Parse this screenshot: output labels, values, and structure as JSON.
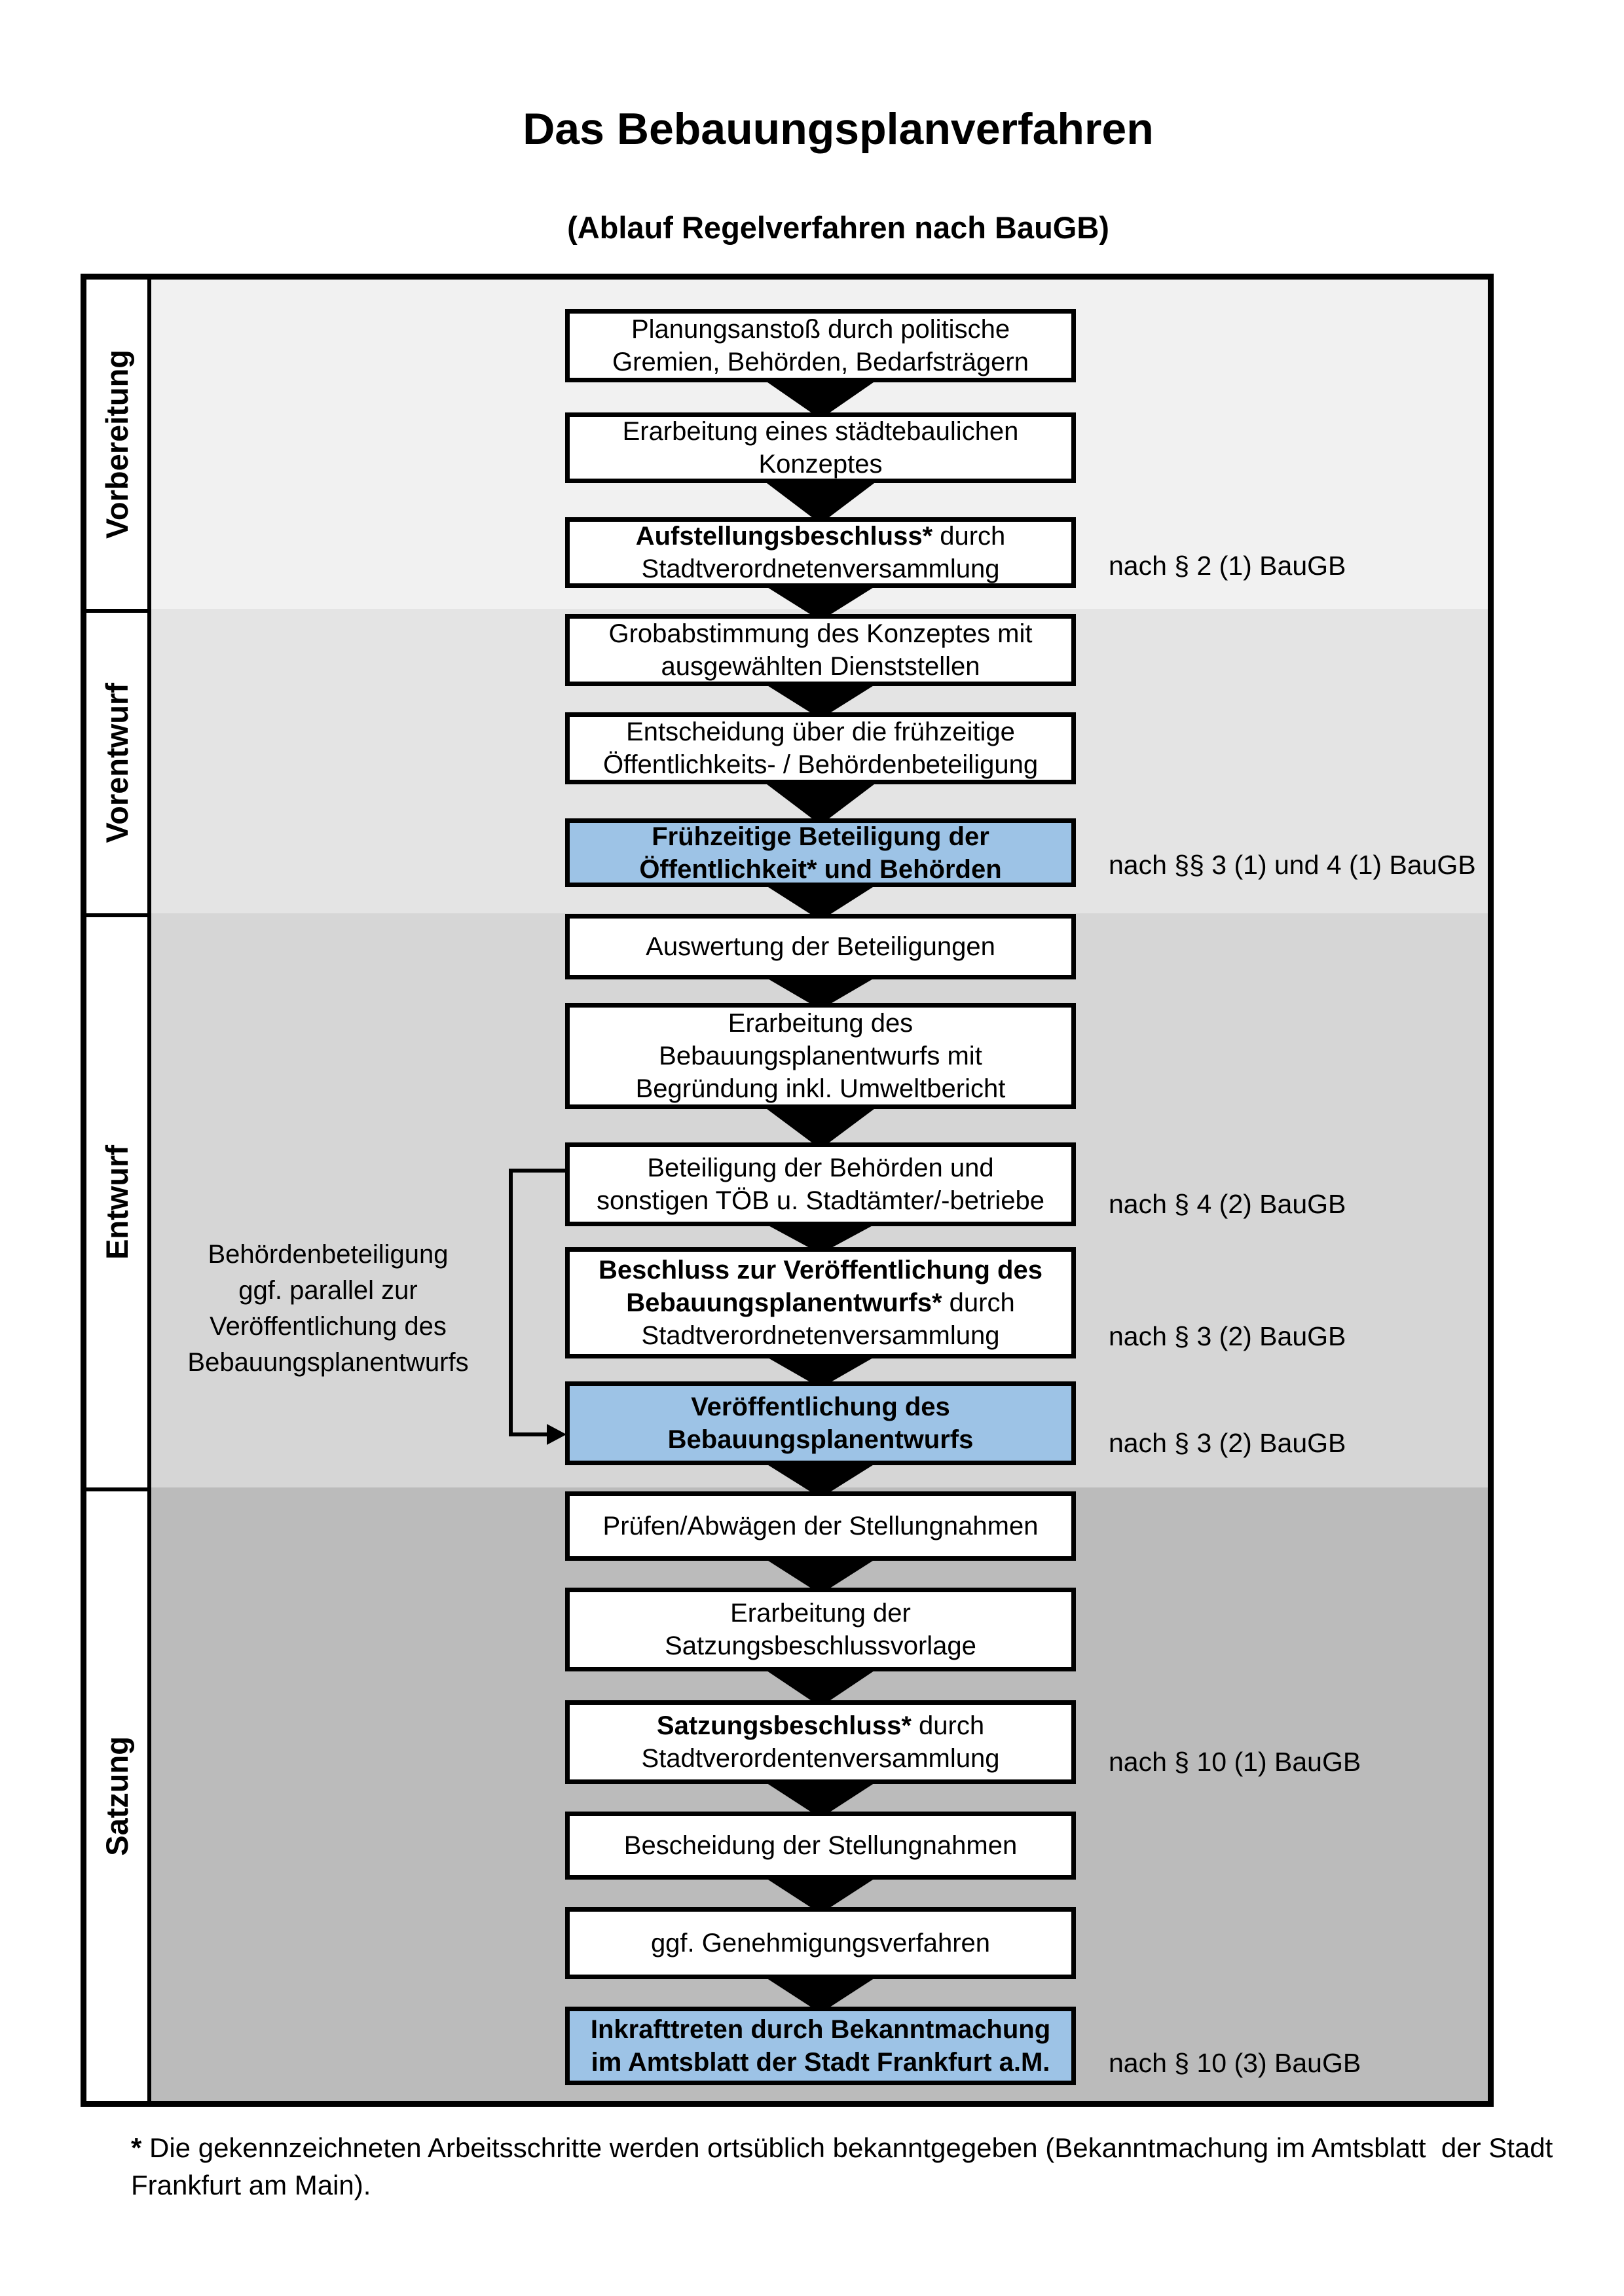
{
  "title": "Das Bebauungsplanverfahren",
  "subtitle": "(Ablauf Regelverfahren nach BauGB)",
  "highlight_color": "#9DC3E6",
  "phases": [
    {
      "label": "Vorbereitung",
      "color": "#F1F1F1"
    },
    {
      "label": "Vorentwurf",
      "color": "#E4E4E4"
    },
    {
      "label": "Entwurf",
      "color": "#D6D6D6"
    },
    {
      "label": "Satzung",
      "color": "#BBBBBB"
    }
  ],
  "steps": [
    {
      "lines": [
        [
          "Planungsanstoß durch politische"
        ],
        [
          "Gremien, Behörden, Bedarfsträgern"
        ]
      ],
      "highlight": false,
      "ref": null
    },
    {
      "lines": [
        [
          "Erarbeitung eines städtebaulichen"
        ],
        [
          "Konzeptes"
        ]
      ],
      "highlight": false,
      "ref": null
    },
    {
      "lines": [
        [
          {
            "t": "Aufstellungsbeschluss*",
            "b": true
          },
          {
            "t": " durch",
            "b": false
          }
        ],
        [
          "Stadtverordnetenversammlung"
        ]
      ],
      "highlight": false,
      "ref": "nach § 2 (1) BauGB"
    },
    {
      "lines": [
        [
          "Grobabstimmung des Konzeptes mit"
        ],
        [
          "ausgewählten Dienststellen"
        ]
      ],
      "highlight": false,
      "ref": null
    },
    {
      "lines": [
        [
          "Entscheidung über die frühzeitige"
        ],
        [
          "Öffentlichkeits- / Behördenbeteiligung"
        ]
      ],
      "highlight": false,
      "ref": null
    },
    {
      "lines": [
        [
          "Frühzeitige Beteiligung der"
        ],
        [
          "Öffentlichkeit* und Behörden"
        ]
      ],
      "highlight": true,
      "ref": "nach §§ 3 (1) und 4 (1) BauGB"
    },
    {
      "lines": [
        [
          "Auswertung der Beteiligungen"
        ]
      ],
      "highlight": false,
      "ref": null
    },
    {
      "lines": [
        [
          "Erarbeitung des"
        ],
        [
          "Bebauungsplanentwurfs mit"
        ],
        [
          "Begründung inkl. Umweltbericht"
        ]
      ],
      "highlight": false,
      "ref": null
    },
    {
      "lines": [
        [
          "Beteiligung der Behörden und"
        ],
        [
          "sonstigen TÖB u. Stadtämter/-betriebe"
        ]
      ],
      "highlight": false,
      "ref": "nach § 4 (2) BauGB"
    },
    {
      "lines": [
        [
          {
            "t": "Beschluss zur Veröffentlichung des",
            "b": true
          }
        ],
        [
          {
            "t": "Bebauungsplanentwurfs*",
            "b": true
          },
          {
            "t": " durch",
            "b": false
          }
        ],
        [
          "Stadtverordnetenversammlung"
        ]
      ],
      "highlight": false,
      "ref": "nach § 3 (2) BauGB"
    },
    {
      "lines": [
        [
          "Veröffentlichung des"
        ],
        [
          "Bebauungsplanentwurfs"
        ]
      ],
      "highlight": true,
      "ref": "nach § 3 (2) BauGB"
    },
    {
      "lines": [
        [
          "Prüfen/Abwägen der Stellungnahmen"
        ]
      ],
      "highlight": false,
      "ref": null
    },
    {
      "lines": [
        [
          "Erarbeitung der"
        ],
        [
          "Satzungsbeschlussvorlage"
        ]
      ],
      "highlight": false,
      "ref": null
    },
    {
      "lines": [
        [
          {
            "t": "Satzungsbeschluss*",
            "b": true
          },
          {
            "t": " durch",
            "b": false
          }
        ],
        [
          "Stadtverordentenversammlung"
        ]
      ],
      "highlight": false,
      "ref": "nach § 10 (1) BauGB"
    },
    {
      "lines": [
        [
          "Bescheidung der Stellungnahmen"
        ]
      ],
      "highlight": false,
      "ref": null
    },
    {
      "lines": [
        [
          "ggf. Genehmigungsverfahren"
        ]
      ],
      "highlight": false,
      "ref": null
    },
    {
      "lines": [
        [
          {
            "t": "Inkrafttreten",
            "b": true
          },
          {
            "t": " durch Bekanntmachung",
            "b": false
          }
        ],
        [
          "im Amtsblatt der Stadt Frankfurt a.M."
        ]
      ],
      "highlight": true,
      "ref": "nach § 10 (3) BauGB"
    }
  ],
  "side_note": {
    "lines": [
      "Behördenbeteiligung",
      "ggf. parallel zur",
      "Veröffentlichung des",
      "Bebauungsplanentwurfs"
    ]
  },
  "footnote": {
    "marker": "*",
    "lines": [
      "Die gekennzeichneten Arbeitsschritte werden ortsüblich bekanntgegeben (Bekanntmachung im Amtsblatt  der Stadt",
      "Frankfurt am Main)."
    ]
  }
}
